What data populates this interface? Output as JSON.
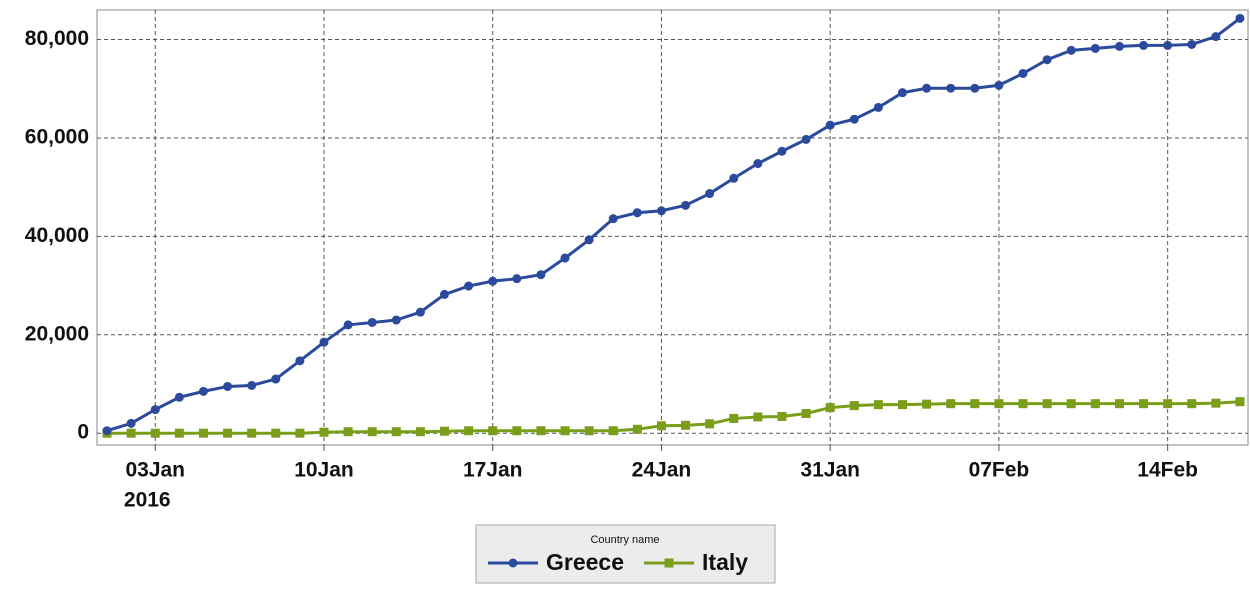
{
  "chart_data": {
    "type": "line",
    "x": [
      "2016-01-01",
      "2016-01-02",
      "2016-01-03",
      "2016-01-04",
      "2016-01-05",
      "2016-01-06",
      "2016-01-07",
      "2016-01-08",
      "2016-01-09",
      "2016-01-10",
      "2016-01-11",
      "2016-01-12",
      "2016-01-13",
      "2016-01-14",
      "2016-01-15",
      "2016-01-16",
      "2016-01-17",
      "2016-01-18",
      "2016-01-19",
      "2016-01-20",
      "2016-01-21",
      "2016-01-22",
      "2016-01-23",
      "2016-01-24",
      "2016-01-25",
      "2016-01-26",
      "2016-01-27",
      "2016-01-28",
      "2016-01-29",
      "2016-01-30",
      "2016-01-31",
      "2016-02-01",
      "2016-02-02",
      "2016-02-03",
      "2016-02-04",
      "2016-02-05",
      "2016-02-06",
      "2016-02-07",
      "2016-02-08",
      "2016-02-09",
      "2016-02-10",
      "2016-02-11",
      "2016-02-12",
      "2016-02-13",
      "2016-02-14",
      "2016-02-15",
      "2016-02-16",
      "2016-02-17"
    ],
    "series": [
      {
        "name": "Greece",
        "color": "#2b4a9c",
        "marker": "circle",
        "values": [
          500,
          2000,
          4800,
          7300,
          8500,
          9500,
          9700,
          11000,
          14700,
          18500,
          22000,
          22500,
          23000,
          24600,
          28200,
          29900,
          30900,
          31400,
          32200,
          35600,
          39300,
          43600,
          44800,
          45200,
          46300,
          48700,
          51800,
          54800,
          57300,
          59700,
          62600,
          63800,
          66200,
          69200,
          70100,
          70100,
          70100,
          70700,
          73100,
          75900,
          77800,
          78200,
          78600,
          78800,
          78800,
          79000,
          80600,
          84300
        ]
      },
      {
        "name": "Italy",
        "color": "#7a9e1a",
        "marker": "square",
        "values": [
          0,
          0,
          0,
          0,
          0,
          0,
          0,
          0,
          0,
          200,
          300,
          300,
          300,
          300,
          400,
          500,
          500,
          500,
          500,
          500,
          500,
          500,
          800,
          1500,
          1600,
          1900,
          3000,
          3300,
          3400,
          4000,
          5200,
          5600,
          5800,
          5800,
          5900,
          6000,
          6000,
          6000,
          6000,
          6000,
          6000,
          6000,
          6000,
          6000,
          6000,
          6000,
          6100,
          6400
        ]
      }
    ],
    "xlim": [
      "2015-12-31T14:00Z",
      "2016-02-17T08:00Z"
    ],
    "xticks": [
      {
        "value": "2016-01-03",
        "label": "03Jan"
      },
      {
        "value": "2016-01-10",
        "label": "10Jan"
      },
      {
        "value": "2016-01-17",
        "label": "17Jan"
      },
      {
        "value": "2016-01-24",
        "label": "24Jan"
      },
      {
        "value": "2016-01-31",
        "label": "31Jan"
      },
      {
        "value": "2016-02-07",
        "label": "07Feb"
      },
      {
        "value": "2016-02-14",
        "label": "14Feb"
      }
    ],
    "x_year_label": "2016",
    "ylim": [
      -2400,
      86000
    ],
    "yticks": [
      0,
      {
        "value": 20000,
        "label": "20,000"
      },
      {
        "value": 40000,
        "label": "40,000"
      },
      {
        "value": 60000,
        "label": "60,000"
      },
      {
        "value": 80000,
        "label": "80,000"
      }
    ],
    "grid": true,
    "legend_title": "Country name",
    "legend_position": "bottom"
  }
}
